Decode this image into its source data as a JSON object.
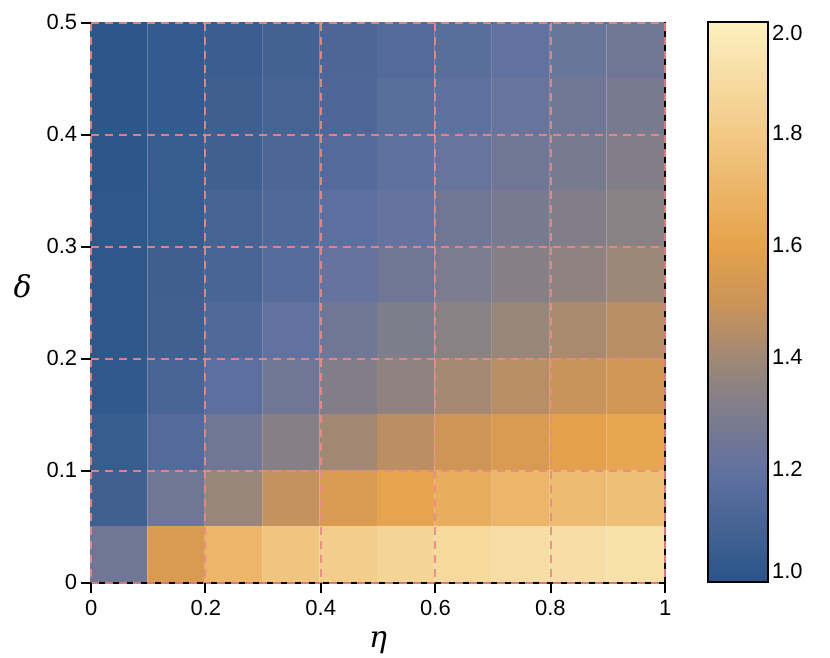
{
  "chart_data": {
    "type": "heatmap",
    "xlabel": "η",
    "ylabel": "δ",
    "x": [
      0.05,
      0.15,
      0.25,
      0.35,
      0.45,
      0.55,
      0.65,
      0.75,
      0.85,
      0.95
    ],
    "y": [
      0.475,
      0.425,
      0.375,
      0.325,
      0.275,
      0.225,
      0.175,
      0.125,
      0.075,
      0.025
    ],
    "xlim": [
      0,
      1
    ],
    "xticks": [
      0,
      0.2,
      0.4,
      0.6,
      0.8,
      1
    ],
    "ylim": [
      0,
      0.5
    ],
    "yticks": [
      0,
      0.1,
      0.2,
      0.3,
      0.4,
      0.5
    ],
    "clim": [
      1,
      2
    ],
    "cticks": [
      {
        "value": 1,
        "label": "1.0"
      },
      1.2,
      1.4,
      1.6,
      1.8,
      {
        "value": 2,
        "label": "2.0"
      }
    ],
    "grid": true,
    "cells": [
      [
        1.01,
        1.04,
        1.06,
        1.09,
        1.12,
        1.15,
        1.17,
        1.2,
        1.23,
        1.25
      ],
      [
        1.01,
        1.04,
        1.07,
        1.1,
        1.13,
        1.17,
        1.19,
        1.22,
        1.25,
        1.28
      ],
      [
        1.01,
        1.05,
        1.08,
        1.12,
        1.15,
        1.19,
        1.22,
        1.25,
        1.28,
        1.31
      ],
      [
        1.02,
        1.05,
        1.1,
        1.14,
        1.18,
        1.21,
        1.25,
        1.28,
        1.31,
        1.34
      ],
      [
        1.02,
        1.07,
        1.11,
        1.16,
        1.21,
        1.25,
        1.29,
        1.33,
        1.36,
        1.39
      ],
      [
        1.02,
        1.08,
        1.14,
        1.2,
        1.25,
        1.3,
        1.34,
        1.38,
        1.42,
        1.45
      ],
      [
        1.03,
        1.11,
        1.18,
        1.25,
        1.31,
        1.36,
        1.41,
        1.45,
        1.49,
        1.52
      ],
      [
        1.05,
        1.15,
        1.25,
        1.33,
        1.4,
        1.46,
        1.51,
        1.55,
        1.59,
        1.62
      ],
      [
        1.08,
        1.25,
        1.38,
        1.48,
        1.55,
        1.61,
        1.66,
        1.7,
        1.73,
        1.75
      ],
      [
        1.25,
        1.55,
        1.7,
        1.78,
        1.82,
        1.86,
        1.88,
        1.9,
        1.91,
        1.92
      ]
    ]
  }
}
